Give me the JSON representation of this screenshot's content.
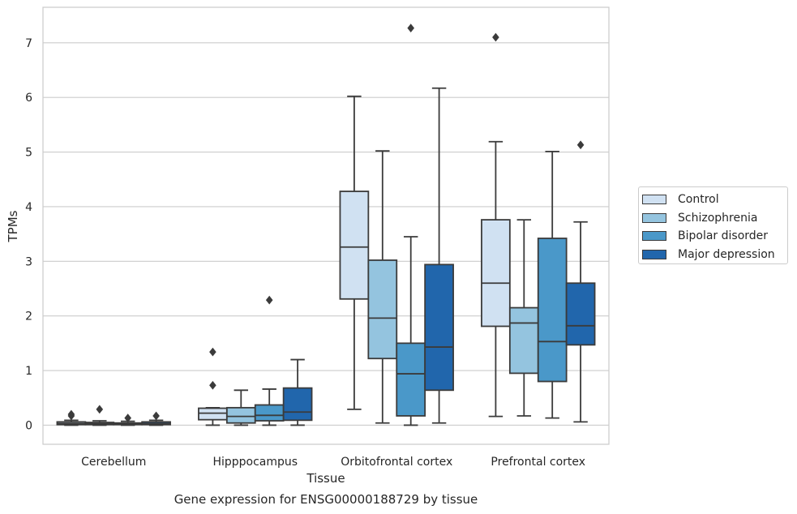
{
  "chart_data": {
    "type": "boxplot",
    "title": "Gene expression for ENSG00000188729 by tissue",
    "xlabel": "Tissue",
    "ylabel": "TPMs",
    "ylim": [
      -0.35,
      7.65
    ],
    "yticks": [
      0,
      1,
      2,
      3,
      4,
      5,
      6,
      7
    ],
    "grid": true,
    "legend_position": "right",
    "categories": [
      "Cerebellum",
      "Hipppocampus",
      "Orbitofrontal cortex",
      "Prefrontal cortex"
    ],
    "series": [
      {
        "name": "Control",
        "color": "#d0e1f2",
        "boxes": [
          {
            "whislo": 0.0,
            "q1": 0.01,
            "med": 0.03,
            "q3": 0.06,
            "whishi": 0.09,
            "fliers": [
              0.17,
              0.2
            ]
          },
          {
            "whislo": 0.0,
            "q1": 0.1,
            "med": 0.22,
            "q3": 0.31,
            "whishi": 0.32,
            "fliers": [
              0.73,
              1.34
            ]
          },
          {
            "whislo": 0.29,
            "q1": 2.31,
            "med": 3.26,
            "q3": 4.28,
            "whishi": 6.02,
            "fliers": []
          },
          {
            "whislo": 0.16,
            "q1": 1.81,
            "med": 2.6,
            "q3": 3.76,
            "whishi": 5.19,
            "fliers": [
              7.1
            ]
          }
        ]
      },
      {
        "name": "Schizophrenia",
        "color": "#94c4df",
        "boxes": [
          {
            "whislo": 0.0,
            "q1": 0.01,
            "med": 0.03,
            "q3": 0.05,
            "whishi": 0.08,
            "fliers": [
              0.29
            ]
          },
          {
            "whislo": 0.0,
            "q1": 0.04,
            "med": 0.16,
            "q3": 0.32,
            "whishi": 0.64,
            "fliers": []
          },
          {
            "whislo": 0.04,
            "q1": 1.22,
            "med": 1.96,
            "q3": 3.02,
            "whishi": 5.02,
            "fliers": []
          },
          {
            "whislo": 0.17,
            "q1": 0.95,
            "med": 1.87,
            "q3": 2.15,
            "whishi": 3.76,
            "fliers": []
          }
        ]
      },
      {
        "name": "Bipolar disorder",
        "color": "#4a98c9",
        "boxes": [
          {
            "whislo": 0.0,
            "q1": 0.01,
            "med": 0.02,
            "q3": 0.04,
            "whishi": 0.07,
            "fliers": [
              0.13
            ]
          },
          {
            "whislo": 0.0,
            "q1": 0.08,
            "med": 0.18,
            "q3": 0.37,
            "whishi": 0.66,
            "fliers": [
              2.29
            ]
          },
          {
            "whislo": 0.0,
            "q1": 0.17,
            "med": 0.94,
            "q3": 1.5,
            "whishi": 3.45,
            "fliers": [
              7.27
            ]
          },
          {
            "whislo": 0.13,
            "q1": 0.8,
            "med": 1.53,
            "q3": 3.42,
            "whishi": 5.01,
            "fliers": []
          }
        ]
      },
      {
        "name": "Major depression",
        "color": "#2166ac",
        "boxes": [
          {
            "whislo": 0.0,
            "q1": 0.01,
            "med": 0.03,
            "q3": 0.06,
            "whishi": 0.09,
            "fliers": [
              0.17
            ]
          },
          {
            "whislo": 0.0,
            "q1": 0.09,
            "med": 0.24,
            "q3": 0.68,
            "whishi": 1.2,
            "fliers": []
          },
          {
            "whislo": 0.04,
            "q1": 0.64,
            "med": 1.43,
            "q3": 2.94,
            "whishi": 6.17,
            "fliers": []
          },
          {
            "whislo": 0.06,
            "q1": 1.47,
            "med": 1.82,
            "q3": 2.6,
            "whishi": 3.72,
            "fliers": [
              5.13
            ]
          }
        ]
      }
    ]
  }
}
